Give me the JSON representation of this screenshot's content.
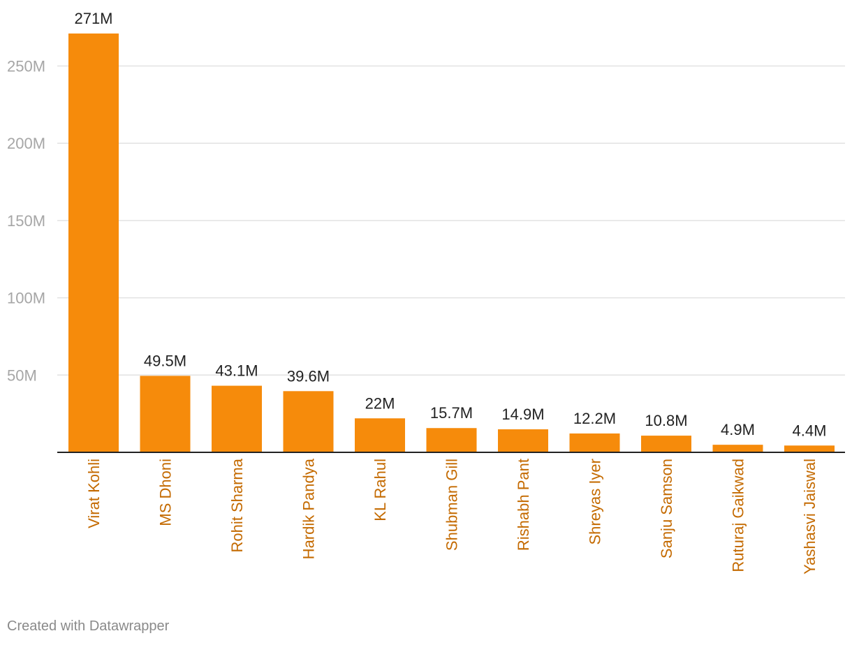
{
  "chart_data": {
    "type": "bar",
    "title": "",
    "xlabel": "",
    "ylabel": "",
    "categories": [
      "Virat Kohli",
      "MS Dhoni",
      "Rohit Sharma",
      "Hardik Pandya",
      "KL Rahul",
      "Shubman Gill",
      "Rishabh Pant",
      "Shreyas Iyer",
      "Sanju Samson",
      "Ruturaj Gaikwad",
      "Yashasvi Jaiswal"
    ],
    "values": [
      271,
      49.5,
      43.1,
      39.6,
      22,
      15.7,
      14.9,
      12.2,
      10.8,
      4.9,
      4.4
    ],
    "value_labels": [
      "271M",
      "49.5M",
      "43.1M",
      "39.6M",
      "22M",
      "15.7M",
      "14.9M",
      "12.2M",
      "10.8M",
      "4.9M",
      "4.4M"
    ],
    "unit": "M",
    "ylim": [
      0,
      290
    ],
    "yticks": [
      50,
      100,
      150,
      200,
      250
    ],
    "ytick_labels": [
      "50M",
      "100M",
      "150M",
      "200M",
      "250M"
    ],
    "grid": true,
    "legend": "none",
    "bar_color": "#f68b0b",
    "category_label_color": "#c46a00"
  },
  "footer": {
    "credit": "Created with Datawrapper"
  }
}
